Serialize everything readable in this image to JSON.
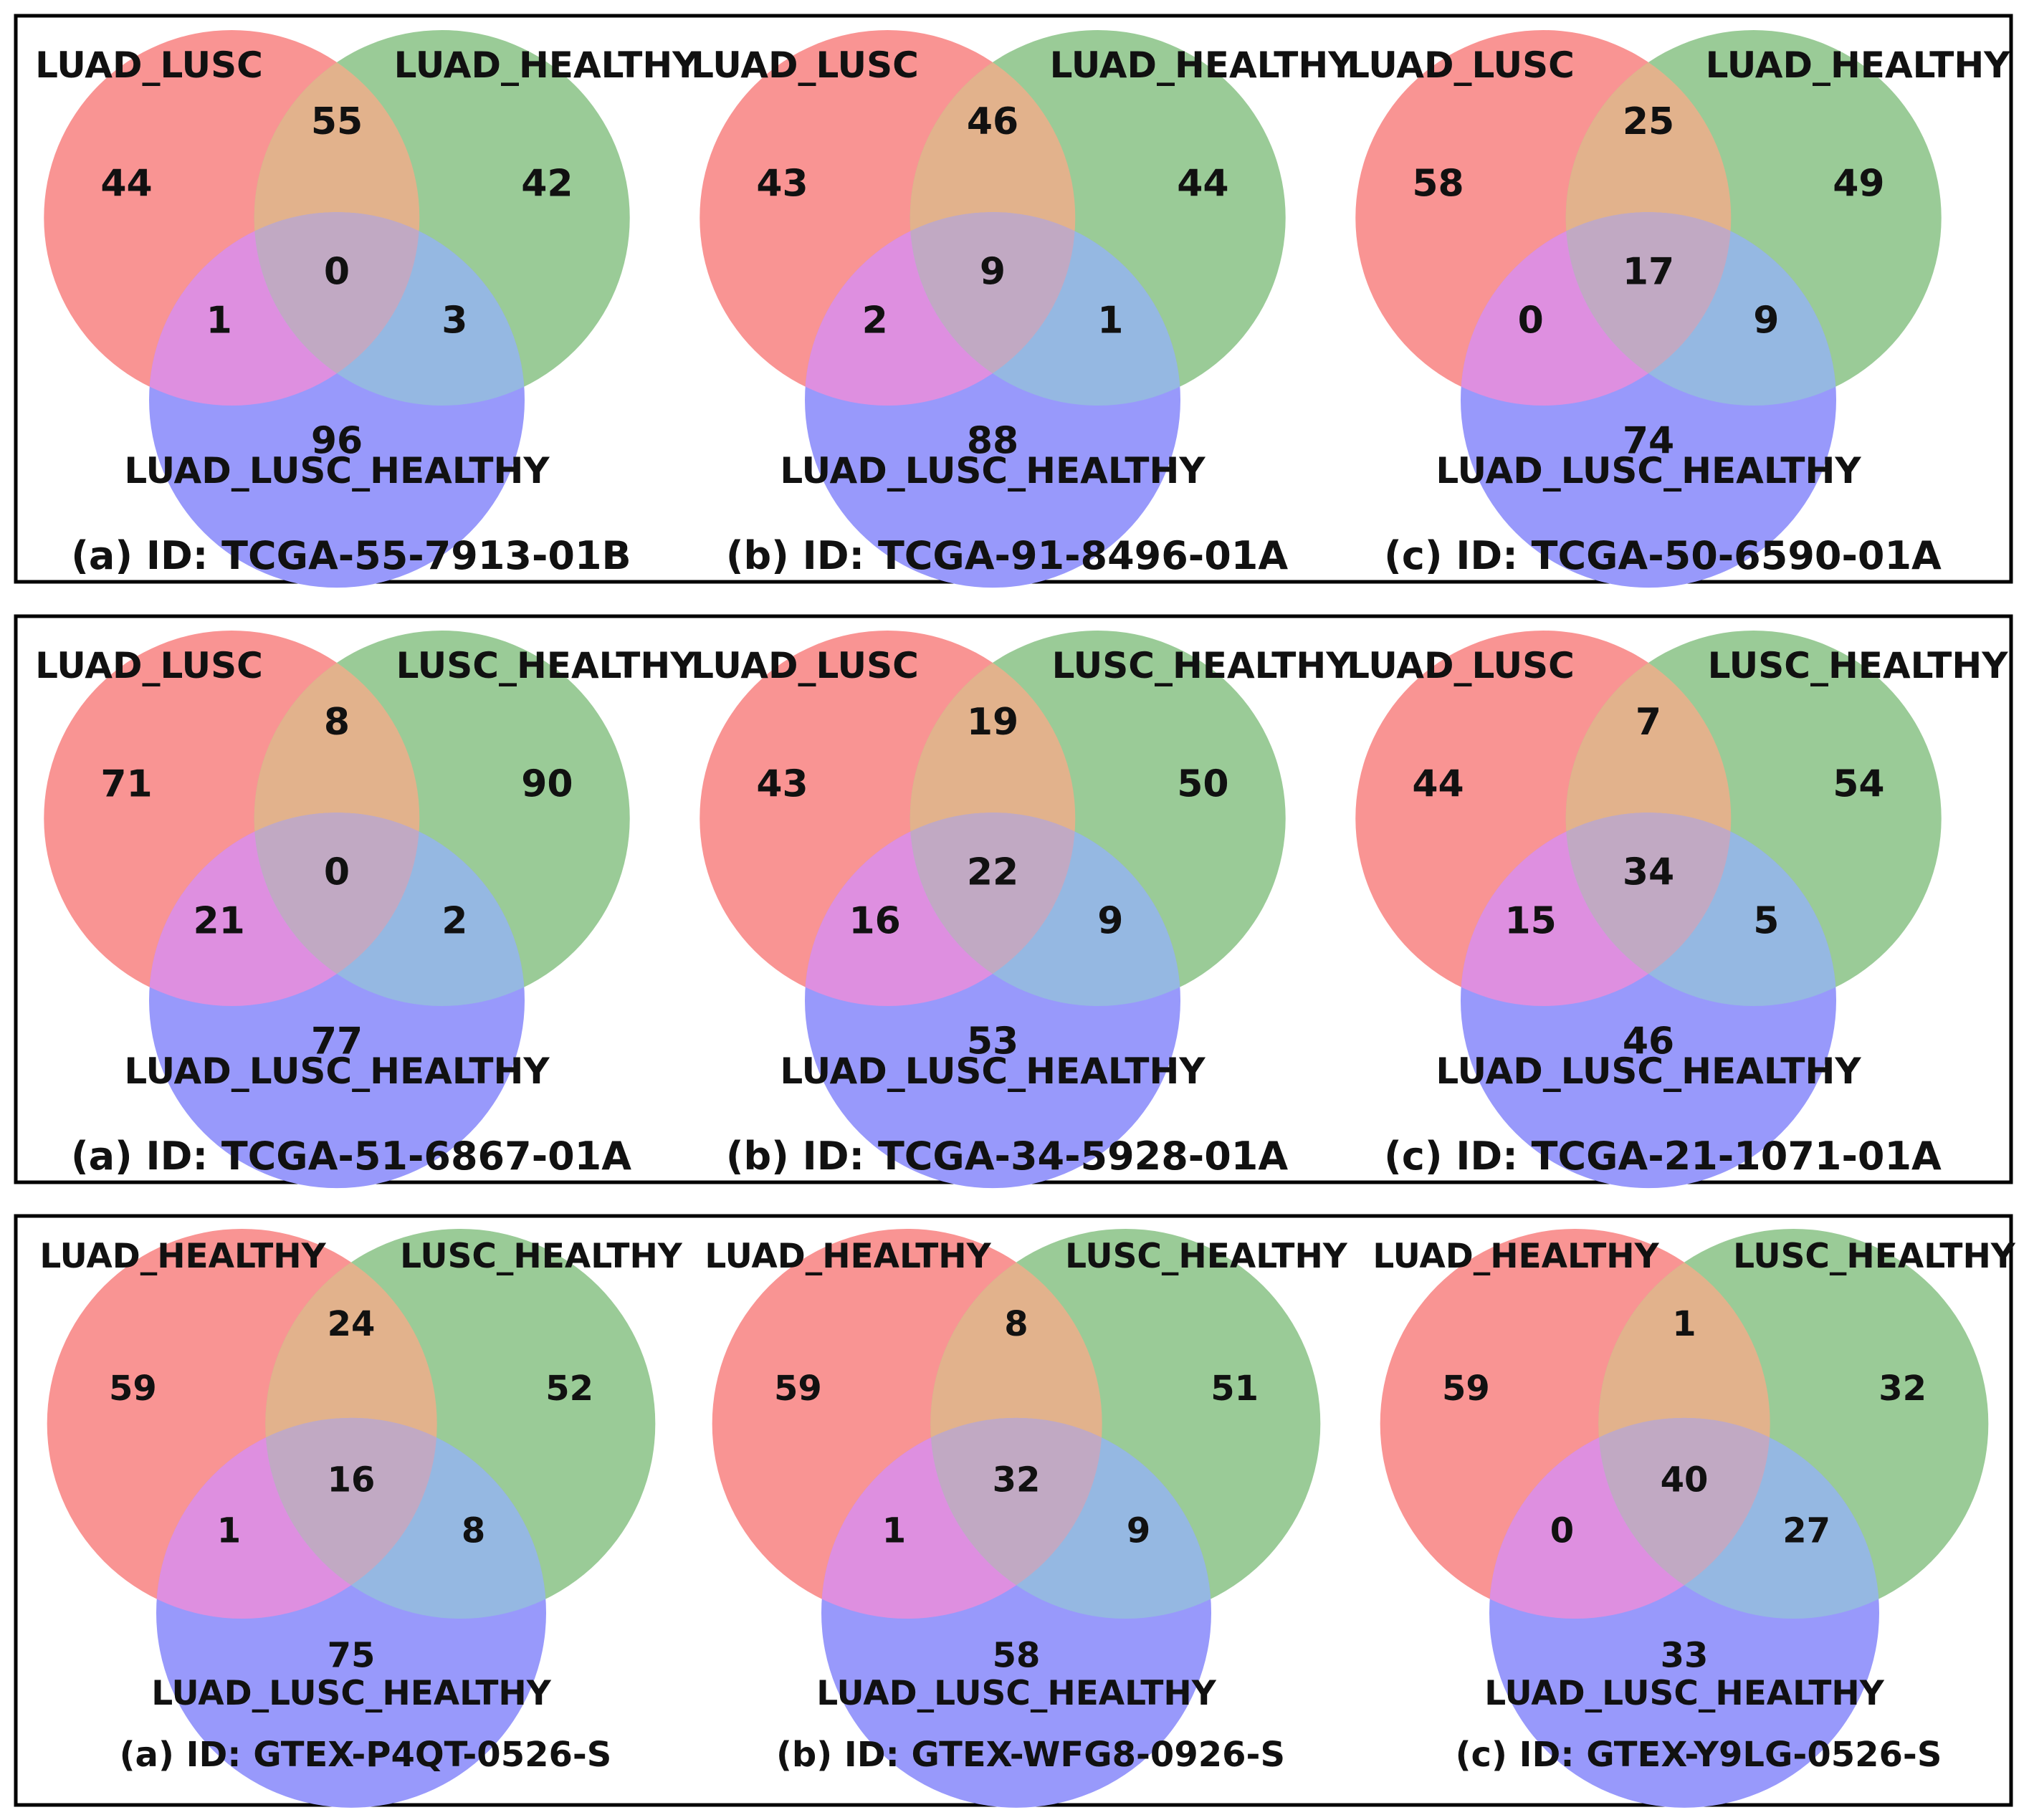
{
  "colors": {
    "set_a": "#ff6b6b",
    "set_b": "#45a845",
    "set_c": "#6b6bff",
    "region_a_only": "#f99493",
    "region_b_only": "#9acb97",
    "region_c_only": "#9899fb",
    "region_ab": "#e2b28c",
    "region_ac": "#de8fe0",
    "region_bc": "#95b8e2",
    "region_abc": "#c1a9c3"
  },
  "groups": [
    {
      "set_labels": [
        "LUAD_LUSC",
        "LUAD_HEALTHY",
        "LUAD_LUSC_HEALTHY"
      ],
      "panels": [
        {
          "caption": "(a) ID: TCGA-55-7913-01B",
          "counts": {
            "a_only": "44",
            "b_only": "42",
            "c_only": "96",
            "ab": "55",
            "ac": "1",
            "bc": "3",
            "abc": "0"
          }
        },
        {
          "caption": "(b) ID: TCGA-91-8496-01A",
          "counts": {
            "a_only": "43",
            "b_only": "44",
            "c_only": "88",
            "ab": "46",
            "ac": "2",
            "bc": "1",
            "abc": "9"
          }
        },
        {
          "caption": "(c) ID: TCGA-50-6590-01A",
          "counts": {
            "a_only": "58",
            "b_only": "49",
            "c_only": "74",
            "ab": "25",
            "ac": "0",
            "bc": "9",
            "abc": "17"
          }
        }
      ]
    },
    {
      "set_labels": [
        "LUAD_LUSC",
        "LUSC_HEALTHY",
        "LUAD_LUSC_HEALTHY"
      ],
      "panels": [
        {
          "caption": "(a) ID: TCGA-51-6867-01A",
          "counts": {
            "a_only": "71",
            "b_only": "90",
            "c_only": "77",
            "ab": "8",
            "ac": "21",
            "bc": "2",
            "abc": "0"
          }
        },
        {
          "caption": "(b) ID: TCGA-34-5928-01A",
          "counts": {
            "a_only": "43",
            "b_only": "50",
            "c_only": "53",
            "ab": "19",
            "ac": "16",
            "bc": "9",
            "abc": "22"
          }
        },
        {
          "caption": "(c) ID: TCGA-21-1071-01A",
          "counts": {
            "a_only": "44",
            "b_only": "54",
            "c_only": "46",
            "ab": "7",
            "ac": "15",
            "bc": "5",
            "abc": "34"
          }
        }
      ]
    },
    {
      "set_labels": [
        "LUAD_HEALTHY",
        "LUSC_HEALTHY",
        "LUAD_LUSC_HEALTHY"
      ],
      "panels": [
        {
          "caption": "(a) ID: GTEX-P4QT-0526-S",
          "counts": {
            "a_only": "59",
            "b_only": "52",
            "c_only": "75",
            "ab": "24",
            "ac": "1",
            "bc": "8",
            "abc": "16"
          }
        },
        {
          "caption": "(b) ID: GTEX-WFG8-0926-S",
          "counts": {
            "a_only": "59",
            "b_only": "51",
            "c_only": "58",
            "ab": "8",
            "ac": "1",
            "bc": "9",
            "abc": "32"
          }
        },
        {
          "caption": "(c) ID: GTEX-Y9LG-0526-S",
          "counts": {
            "a_only": "59",
            "b_only": "32",
            "c_only": "33",
            "ab": "1",
            "ac": "0",
            "bc": "27",
            "abc": "40"
          }
        }
      ]
    }
  ]
}
